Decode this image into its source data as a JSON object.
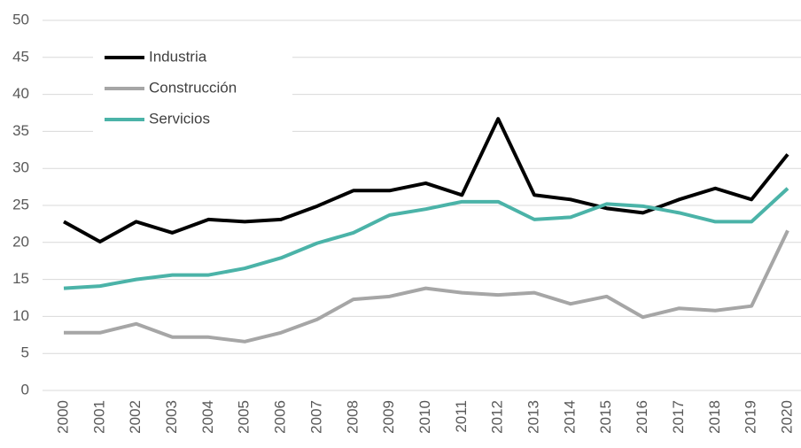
{
  "chart_data": {
    "type": "line",
    "categories": [
      "2000",
      "2001",
      "2002",
      "2003",
      "2004",
      "2005",
      "2006",
      "2007",
      "2008",
      "2009",
      "2010",
      "2011",
      "2012",
      "2013",
      "2014",
      "2015",
      "2016",
      "2017",
      "2018",
      "2019",
      "2020"
    ],
    "series": [
      {
        "name": "Industria",
        "color": "#000000",
        "values": [
          22.8,
          20.1,
          22.8,
          21.3,
          23.1,
          22.8,
          23.1,
          24.9,
          27.0,
          27.0,
          28.0,
          26.4,
          36.7,
          26.4,
          25.8,
          24.6,
          24.0,
          25.8,
          27.3,
          25.8,
          31.9
        ]
      },
      {
        "name": "Construcción",
        "color": "#a6a6a6",
        "values": [
          7.8,
          7.8,
          9.0,
          7.2,
          7.2,
          6.6,
          7.8,
          9.6,
          12.3,
          12.7,
          13.8,
          13.2,
          12.9,
          13.2,
          11.7,
          12.7,
          9.9,
          11.1,
          10.8,
          11.4,
          21.6
        ]
      },
      {
        "name": "Servicios",
        "color": "#4bb3a8",
        "values": [
          13.8,
          14.1,
          15.0,
          15.6,
          15.6,
          16.5,
          17.9,
          19.9,
          21.3,
          23.7,
          24.5,
          25.5,
          25.5,
          23.1,
          23.4,
          25.2,
          24.9,
          24.0,
          22.8,
          22.8,
          27.3
        ]
      }
    ],
    "ylim": [
      0,
      50
    ],
    "yticks": [
      0,
      5,
      10,
      15,
      20,
      25,
      30,
      35,
      40,
      45,
      50
    ],
    "grid": true,
    "legend": "upper left"
  }
}
